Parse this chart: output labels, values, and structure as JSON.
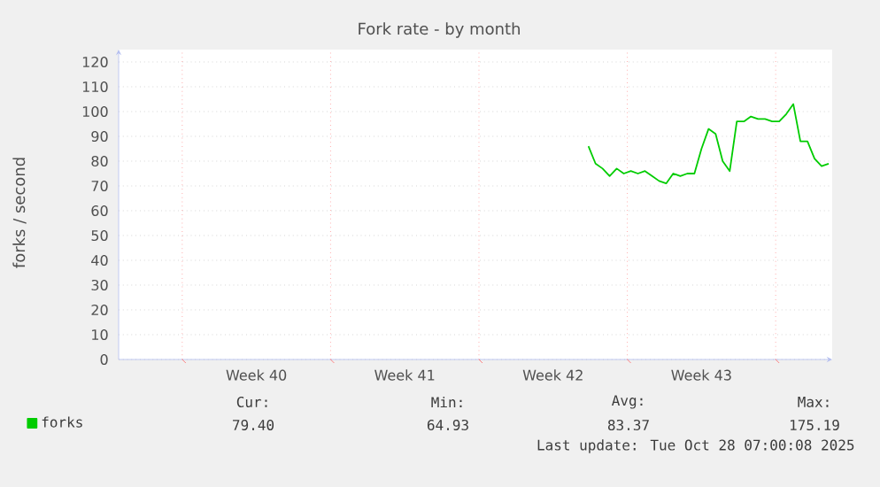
{
  "chart_data": {
    "type": "line",
    "title": "Fork rate - by month",
    "ylabel": "forks / second",
    "categories": [
      null,
      null,
      null,
      null,
      null,
      null,
      null,
      null,
      null,
      null,
      null,
      null,
      null,
      null,
      null,
      null,
      null,
      null,
      null,
      "Week 40",
      null,
      null,
      null,
      null,
      null,
      null,
      null,
      null,
      null,
      null,
      null,
      null,
      null,
      null,
      null,
      null,
      null,
      null,
      null,
      null,
      "Week 41",
      null,
      null,
      null,
      null,
      null,
      null,
      null,
      null,
      null,
      null,
      null,
      null,
      null,
      null,
      null,
      null,
      null,
      null,
      null,
      null,
      "Week 42",
      null,
      null,
      null,
      null,
      null,
      null,
      null,
      null,
      null,
      null,
      null,
      null,
      null,
      null,
      null,
      null,
      null,
      null,
      null,
      null,
      "Week 43",
      null,
      null,
      null,
      null,
      null,
      null,
      null,
      null,
      null,
      null,
      null,
      null,
      null,
      null,
      null,
      null,
      null,
      null
    ],
    "ylim": [
      0,
      125
    ],
    "yticks": [
      0,
      10,
      20,
      30,
      40,
      50,
      60,
      70,
      80,
      90,
      100,
      110,
      120
    ],
    "grid": true,
    "legend": "bottom left",
    "marker": "none",
    "line_style": "solid",
    "series": [
      {
        "name": "forks",
        "color": "#00cc00",
        "values": [
          null,
          null,
          null,
          null,
          null,
          null,
          null,
          null,
          null,
          null,
          null,
          null,
          null,
          null,
          null,
          null,
          null,
          null,
          null,
          null,
          null,
          null,
          null,
          null,
          null,
          null,
          null,
          null,
          null,
          null,
          null,
          null,
          null,
          null,
          null,
          null,
          null,
          null,
          null,
          null,
          null,
          null,
          null,
          null,
          null,
          null,
          null,
          null,
          null,
          null,
          null,
          null,
          null,
          null,
          null,
          null,
          null,
          null,
          null,
          null,
          null,
          null,
          null,
          null,
          null,
          null,
          86,
          79,
          77,
          74,
          77,
          75,
          76,
          75,
          76,
          74,
          72,
          71,
          75,
          74,
          75,
          75,
          85,
          93,
          91,
          80,
          76,
          96,
          96,
          98,
          97,
          97,
          96,
          96,
          99,
          103,
          88,
          88,
          81,
          78,
          79
        ]
      }
    ],
    "annotations": [
      "Cur:",
      "79.40",
      "Min:",
      "64.93",
      "Avg:",
      "83.37",
      "Max:",
      "175.19",
      "Last update: Tue Oct 28 07:00:08 2025"
    ]
  }
}
